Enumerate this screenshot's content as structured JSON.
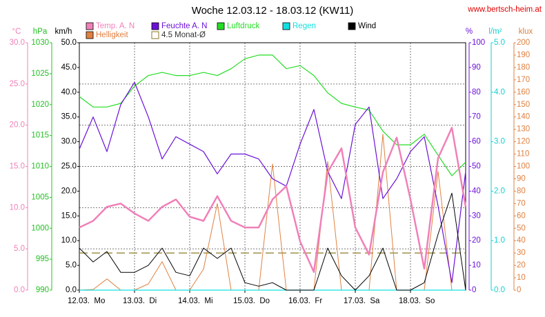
{
  "chart_data": {
    "type": "line",
    "title": "Woche 12.03.12 - 18.03.12 (KW11)",
    "source": "www.bertsch-heim.at",
    "grid": true,
    "x": [
      0,
      6,
      12,
      18,
      24,
      30,
      36,
      42,
      48,
      54,
      60,
      66,
      72,
      78,
      84,
      90,
      96,
      102,
      108,
      114,
      120,
      126,
      132,
      138,
      144,
      150,
      156,
      162,
      168
    ],
    "xlim": [
      0,
      168
    ],
    "xticks": [
      {
        "value": 0,
        "label": "12.03.  Mo"
      },
      {
        "value": 24,
        "label": "13.03.  Di"
      },
      {
        "value": 48,
        "label": "14.03.  Mi"
      },
      {
        "value": 72,
        "label": "15.03.  Do"
      },
      {
        "value": 96,
        "label": "16.03.  Fr"
      },
      {
        "value": 120,
        "label": "17.03.  Sa"
      },
      {
        "value": 144,
        "label": "18.03.  So"
      }
    ],
    "axes": [
      {
        "label": "°C",
        "color": "#f080b8",
        "side": "left",
        "lim": [
          0,
          30
        ],
        "ticks": [
          {
            "value": 0,
            "label": "0.0"
          },
          {
            "value": 5,
            "label": "5.0"
          },
          {
            "value": 10,
            "label": "10.0"
          },
          {
            "value": 15,
            "label": "15.0"
          },
          {
            "value": 20,
            "label": "20.0"
          },
          {
            "value": 25,
            "label": "25.0"
          },
          {
            "value": 30,
            "label": "30.0"
          }
        ]
      },
      {
        "label": "hPa",
        "color": "#22c022",
        "side": "left",
        "lim": [
          990,
          1030
        ],
        "ticks": [
          990,
          995,
          1000,
          1005,
          1010,
          1015,
          1020,
          1025,
          1030
        ]
      },
      {
        "label": "km/h",
        "color": "#000000",
        "side": "left",
        "lim": [
          0,
          50
        ],
        "ticks": [
          {
            "value": 0,
            "label": "0.0"
          },
          {
            "value": 5,
            "label": "5.0"
          },
          {
            "value": 10,
            "label": "10.0"
          },
          {
            "value": 15,
            "label": "15.0"
          },
          {
            "value": 20,
            "label": "20.0"
          },
          {
            "value": 25,
            "label": "25.0"
          },
          {
            "value": 30,
            "label": "30.0"
          },
          {
            "value": 35,
            "label": "35.0"
          },
          {
            "value": 40,
            "label": "40.0"
          },
          {
            "value": 45,
            "label": "45.0"
          },
          {
            "value": 50,
            "label": "50.0"
          }
        ]
      },
      {
        "label": "%",
        "color": "#6a10d8",
        "side": "right",
        "lim": [
          0,
          100
        ],
        "ticks": [
          0,
          10,
          20,
          30,
          40,
          50,
          60,
          70,
          80,
          90,
          100
        ]
      },
      {
        "label": "l/m²",
        "color": "#10d0d0",
        "side": "right",
        "lim": [
          0,
          5
        ],
        "ticks": [
          {
            "value": 0,
            "label": "0.0"
          },
          {
            "value": 1,
            "label": "1.0"
          },
          {
            "value": 2,
            "label": "2.0"
          },
          {
            "value": 3,
            "label": "3.0"
          },
          {
            "value": 4,
            "label": "4.0"
          },
          {
            "value": 5,
            "label": "5.0"
          }
        ]
      },
      {
        "label": "klux",
        "color": "#e08040",
        "side": "right",
        "lim": [
          0,
          200
        ],
        "ticks": [
          0,
          10,
          20,
          30,
          40,
          50,
          60,
          70,
          80,
          90,
          100,
          110,
          120,
          130,
          140,
          150,
          160,
          170,
          180,
          190,
          200
        ]
      }
    ],
    "series": [
      {
        "name": "Temp. A. N",
        "color": "#f080b8",
        "axis": 0,
        "width": 2.5,
        "values": [
          7.6,
          8.4,
          10.1,
          10.5,
          9.3,
          8.4,
          10.1,
          11,
          8.9,
          8.4,
          11.4,
          8.4,
          7.6,
          7.6,
          11,
          12.6,
          5.9,
          2.2,
          14.3,
          17.2,
          7.6,
          4.3,
          14.3,
          18.5,
          11,
          2.6,
          16,
          19.7,
          10.1
        ]
      },
      {
        "name": "Feuchte A. N",
        "color": "#6a10d8",
        "axis": 3,
        "width": 1.2,
        "values": [
          57,
          70,
          56,
          75,
          84,
          70,
          53,
          62,
          59,
          56,
          47,
          55,
          55,
          53,
          45,
          42,
          59,
          73,
          48,
          37,
          67,
          74,
          37,
          45,
          56,
          62,
          34,
          3,
          48
        ]
      },
      {
        "name": "Luftdruck",
        "color": "#22dd22",
        "axis": 1,
        "width": 1.2,
        "values": [
          1021.3,
          1019.6,
          1019.6,
          1020.2,
          1023,
          1024.7,
          1025.2,
          1024.7,
          1024.7,
          1025.2,
          1024.7,
          1025.8,
          1027.4,
          1028,
          1028,
          1025.8,
          1026.3,
          1024.7,
          1021.9,
          1020.2,
          1019.6,
          1019.1,
          1015.7,
          1013.5,
          1013.5,
          1015.2,
          1011.8,
          1008.5,
          1010.7
        ]
      },
      {
        "name": "Regen",
        "color": "#10e0e0",
        "axis": 4,
        "width": 1.2,
        "values": [
          0,
          0,
          0,
          0,
          0,
          0,
          0,
          0,
          0,
          0,
          0,
          0,
          0,
          0,
          0,
          0,
          0,
          0,
          0,
          0,
          0,
          0,
          0,
          0,
          0,
          0,
          0,
          0,
          0
        ]
      },
      {
        "name": "Wind",
        "color": "#000000",
        "axis": 2,
        "width": 1,
        "values": [
          8.5,
          5.7,
          7.8,
          3.6,
          3.6,
          5,
          8.5,
          3.6,
          2.9,
          8.5,
          6.4,
          8.5,
          1.5,
          0.8,
          1.5,
          0,
          0,
          0,
          8.5,
          2.9,
          0,
          2.9,
          8.5,
          0,
          0,
          1.5,
          11.3,
          19.6,
          0
        ]
      },
      {
        "name": "Helligkeit",
        "color": "#e08040",
        "axis": 5,
        "width": 1,
        "values": [
          0,
          0.5,
          9,
          0,
          0,
          5,
          23,
          0,
          0,
          17,
          70,
          0,
          0,
          0,
          102,
          0,
          0,
          0,
          104,
          0,
          0,
          0,
          126,
          0,
          0,
          0,
          96,
          0,
          0
        ]
      }
    ],
    "reference_line": {
      "name": "4.5 Monat-Ø",
      "value": 4.5,
      "axis": 0,
      "color": "#8a7a20"
    }
  }
}
